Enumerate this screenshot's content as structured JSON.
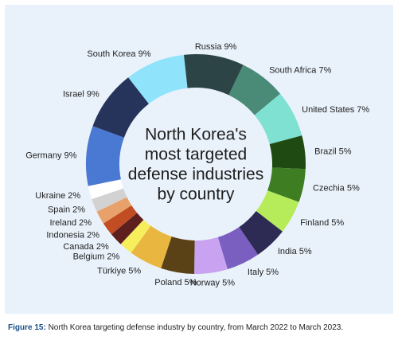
{
  "chart_data": {
    "type": "pie",
    "title": "North Korea's most targeted defense industries by country",
    "title_lines": [
      "North Korea's",
      "most targeted",
      "defense industries",
      "by country"
    ],
    "unit": "%",
    "slices": [
      {
        "label": "South Korea",
        "value": 9,
        "color": "#8fe3fb"
      },
      {
        "label": "Russia",
        "value": 9,
        "color": "#2c4446"
      },
      {
        "label": "South Africa",
        "value": 7,
        "color": "#4a8b78"
      },
      {
        "label": "United States",
        "value": 7,
        "color": "#7fe1d2"
      },
      {
        "label": "Brazil",
        "value": 5,
        "color": "#1f4a12"
      },
      {
        "label": "Czechia",
        "value": 5,
        "color": "#3f7d23"
      },
      {
        "label": "Finland",
        "value": 5,
        "color": "#b6ec5a"
      },
      {
        "label": "India",
        "value": 5,
        "color": "#2d2a54"
      },
      {
        "label": "Italy",
        "value": 5,
        "color": "#7a5fc0"
      },
      {
        "label": "Norway",
        "value": 5,
        "color": "#c9a2f1"
      },
      {
        "label": "Poland",
        "value": 5,
        "color": "#5a4216"
      },
      {
        "label": "Türkiye",
        "value": 5,
        "color": "#e9b640"
      },
      {
        "label": "Belgium",
        "value": 2,
        "color": "#f6ee5c"
      },
      {
        "label": "Canada",
        "value": 2,
        "color": "#5e1f1f"
      },
      {
        "label": "Indonesia",
        "value": 2,
        "color": "#c24d22"
      },
      {
        "label": "Ireland",
        "value": 2,
        "color": "#e8a16b"
      },
      {
        "label": "Spain",
        "value": 2,
        "color": "#d2d2d2"
      },
      {
        "label": "Ukraine",
        "value": 2,
        "color": "#ffffff"
      },
      {
        "label": "Germany",
        "value": 9,
        "color": "#4a79d3"
      },
      {
        "label": "Israel",
        "value": 9,
        "color": "#26335a"
      }
    ]
  },
  "caption": {
    "label": "Figure 15:",
    "text": "North Korea targeting defense industry by country, from March 2022 to March 2023."
  }
}
